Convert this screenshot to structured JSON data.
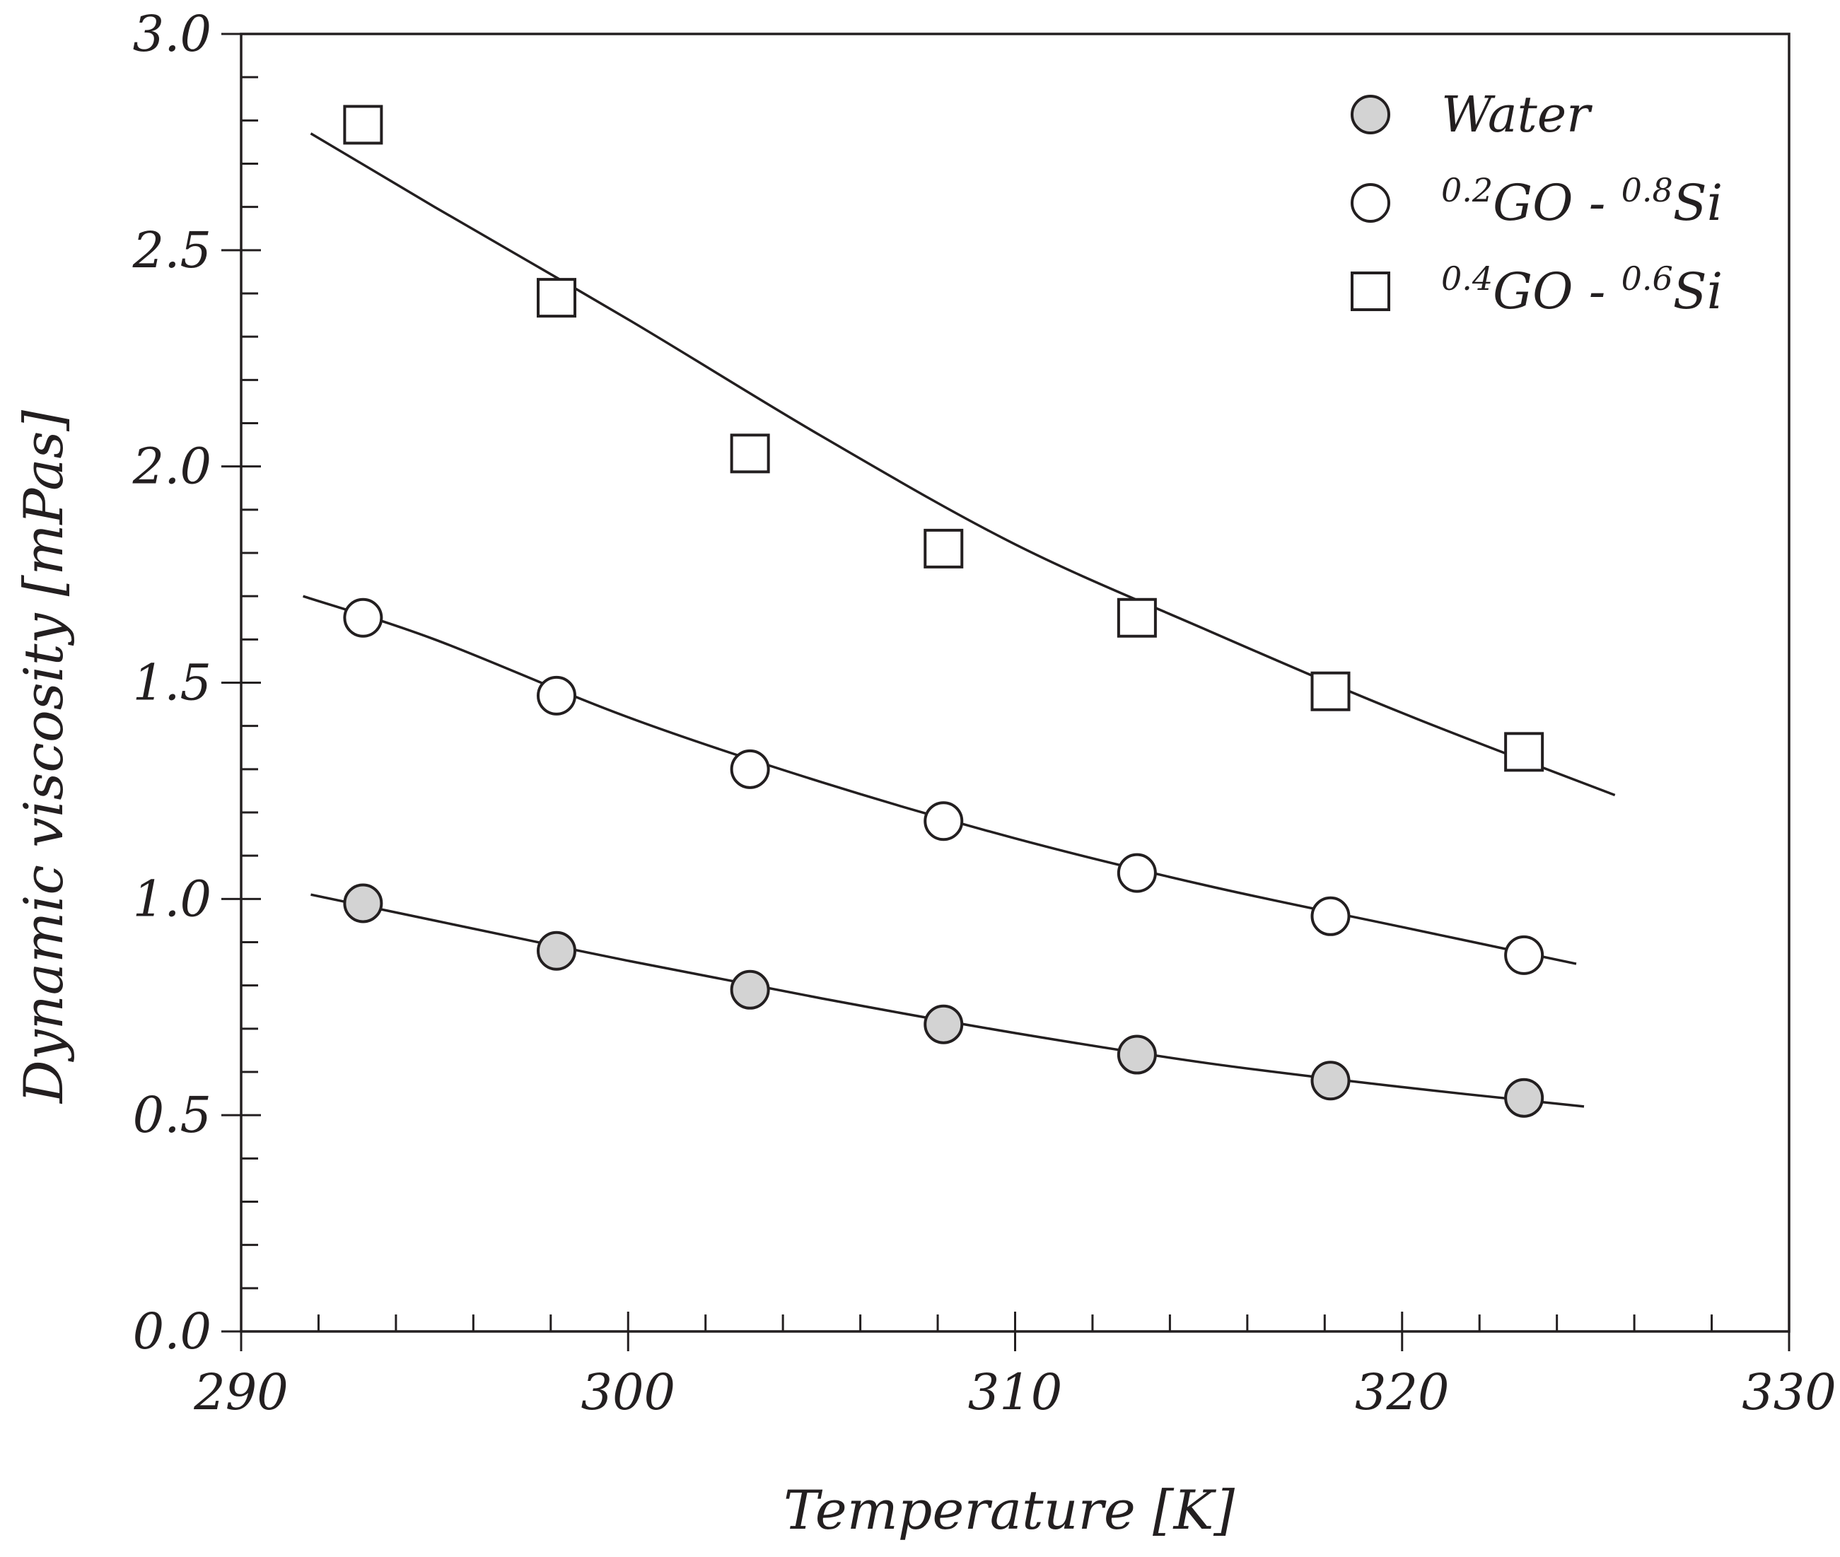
{
  "chart_data": {
    "type": "scatter",
    "title": "",
    "xlabel": "Temperature [K]",
    "ylabel": "Dynamic viscosity [mPas]",
    "xlim": [
      290,
      330
    ],
    "ylim": [
      0.0,
      3.0
    ],
    "x_ticks": [
      "290",
      "300",
      "310",
      "320",
      "330"
    ],
    "y_ticks": [
      "0.0",
      "0.5",
      "1.0",
      "1.5",
      "2.0",
      "2.5",
      "3.0"
    ],
    "x_tick_values": [
      290,
      300,
      310,
      320,
      330
    ],
    "y_tick_values": [
      0.0,
      0.5,
      1.0,
      1.5,
      2.0,
      2.5,
      3.0
    ],
    "x_minor_step": 2,
    "y_minor_step": 0.1,
    "grid": false,
    "legend_position": "top-right",
    "series": [
      {
        "name": "Water",
        "legend": {
          "sup1": "",
          "main1": "Water",
          "sup2": "",
          "main2": ""
        },
        "marker": "circle",
        "fill": "#d3d3d3",
        "x": [
          293.15,
          298.15,
          303.15,
          308.15,
          313.15,
          318.15,
          323.15
        ],
        "y": [
          0.99,
          0.88,
          0.79,
          0.71,
          0.64,
          0.58,
          0.54
        ],
        "fit": [
          [
            291.8,
            1.01
          ],
          [
            295,
            0.95
          ],
          [
            300,
            0.857
          ],
          [
            305,
            0.77
          ],
          [
            310,
            0.69
          ],
          [
            315,
            0.62
          ],
          [
            320,
            0.565
          ],
          [
            324.7,
            0.52
          ]
        ]
      },
      {
        "name": "0.2GO - 0.8Si",
        "legend": {
          "sup1": "0.2",
          "main1": "GO - ",
          "sup2": "0.8",
          "main2": "Si"
        },
        "marker": "circle",
        "fill": "#ffffff",
        "x": [
          293.15,
          298.15,
          303.15,
          308.15,
          313.15,
          318.15,
          323.15
        ],
        "y": [
          1.65,
          1.47,
          1.3,
          1.18,
          1.06,
          0.96,
          0.87
        ],
        "fit": [
          [
            291.6,
            1.7
          ],
          [
            295,
            1.6
          ],
          [
            300,
            1.42
          ],
          [
            305,
            1.27
          ],
          [
            310,
            1.14
          ],
          [
            315,
            1.03
          ],
          [
            320,
            0.935
          ],
          [
            324.5,
            0.85
          ]
        ]
      },
      {
        "name": "0.4GO - 0.6Si",
        "legend": {
          "sup1": "0.4",
          "main1": "GO - ",
          "sup2": "0.6",
          "main2": "Si"
        },
        "marker": "square",
        "fill": "#ffffff",
        "x": [
          293.15,
          298.15,
          303.15,
          308.15,
          313.15,
          318.15,
          323.15
        ],
        "y": [
          2.79,
          2.39,
          2.03,
          1.81,
          1.65,
          1.48,
          1.34
        ],
        "fit": [
          [
            291.8,
            2.77
          ],
          [
            295,
            2.6
          ],
          [
            300,
            2.34
          ],
          [
            305,
            2.07
          ],
          [
            310,
            1.82
          ],
          [
            315,
            1.62
          ],
          [
            320,
            1.43
          ],
          [
            325.5,
            1.24
          ]
        ]
      }
    ]
  }
}
